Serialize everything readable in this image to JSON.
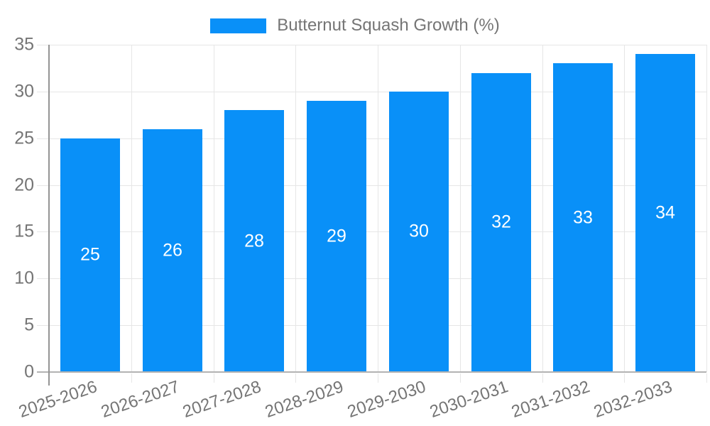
{
  "legend": {
    "label": "Butternut Squash Growth (%)"
  },
  "colors": {
    "bar": "#0990F8",
    "grid": "#e6e6e6",
    "axis_line": "#949494",
    "baseline": "#b3b3b3",
    "text": "#757575",
    "bar_label": "#ffffff"
  },
  "chart_data": {
    "type": "bar",
    "title": "",
    "xlabel": "",
    "ylabel": "",
    "categories": [
      "2025-2026",
      "2026-2027",
      "2027-2028",
      "2028-2029",
      "2029-2030",
      "2030-2031",
      "2031-2032",
      "2032-2033"
    ],
    "values": [
      25,
      26,
      28,
      29,
      30,
      32,
      33,
      34
    ],
    "series_name": "Butternut Squash Growth (%)",
    "ylim": [
      0,
      35
    ],
    "yticks": [
      0,
      5,
      10,
      15,
      20,
      25,
      30,
      35
    ],
    "grid": true,
    "legend_position": "top",
    "bar_value_labels_inside": true,
    "x_labels_rotated": true
  }
}
